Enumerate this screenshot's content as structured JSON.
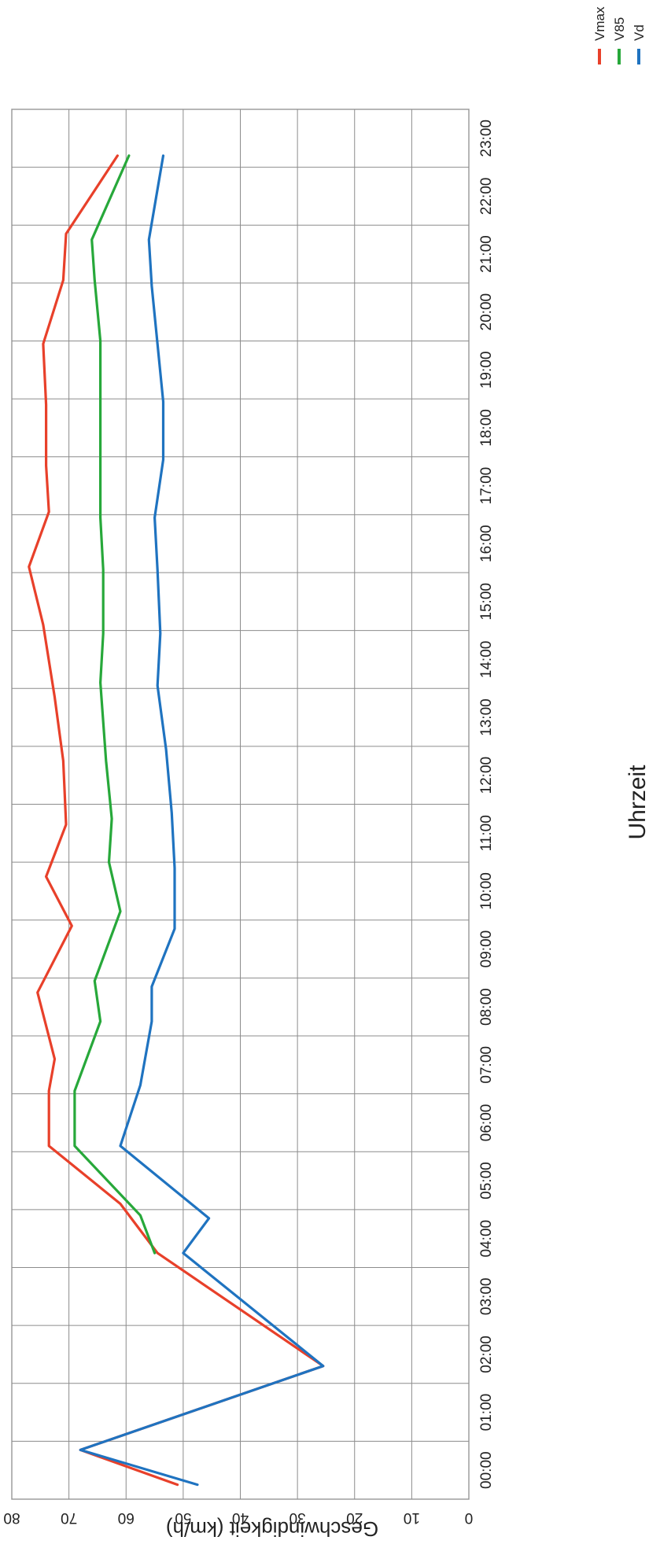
{
  "chart_data": {
    "type": "line",
    "title": "",
    "xlabel": "Uhrzeit",
    "ylabel": "Geschwindigkeit (km/h)",
    "ylim": [
      0,
      80
    ],
    "yticks": [
      0,
      10,
      20,
      30,
      40,
      50,
      60,
      70,
      80
    ],
    "grid": true,
    "legend_position": "top-right",
    "orientation": "rotated-90-clockwise",
    "x": [
      "00:00",
      "01:00",
      "02:00",
      "03:00",
      "04:00",
      "05:00",
      "06:00",
      "07:00",
      "08:00",
      "09:00",
      "10:00",
      "11:00",
      "12:00",
      "13:00",
      "14:00",
      "15:00",
      "16:00",
      "17:00",
      "18:00",
      "19:00",
      "20:00",
      "21:00",
      "22:00",
      "23:00"
    ],
    "series": [
      {
        "name": "Vmax",
        "color": "#e8402a",
        "points": [
          [
            0.25,
            51
          ],
          [
            0.85,
            68
          ],
          [
            2.3,
            25.5
          ],
          [
            4.25,
            54.5
          ],
          [
            5.1,
            61
          ],
          [
            6.1,
            73.5
          ],
          [
            7.05,
            73.5
          ],
          [
            7.6,
            72.5
          ],
          [
            8.75,
            75.5
          ],
          [
            9.9,
            69.5
          ],
          [
            10.75,
            74
          ],
          [
            11.65,
            70.5
          ],
          [
            12.75,
            71
          ],
          [
            13.85,
            72.5
          ],
          [
            15.1,
            74.5
          ],
          [
            16.1,
            77
          ],
          [
            17.05,
            73.5
          ],
          [
            17.85,
            74
          ],
          [
            18.9,
            74
          ],
          [
            19.95,
            74.5
          ],
          [
            21.05,
            71
          ],
          [
            21.85,
            70.5
          ],
          [
            23.2,
            61.5
          ]
        ]
      },
      {
        "name": "V85",
        "color": "#27a83a",
        "points": [
          [
            4.25,
            55
          ],
          [
            4.9,
            57.5
          ],
          [
            6.1,
            69
          ],
          [
            7.05,
            69
          ],
          [
            8.25,
            64.5
          ],
          [
            8.95,
            65.5
          ],
          [
            10.15,
            61
          ],
          [
            11.0,
            63
          ],
          [
            11.75,
            62.5
          ],
          [
            12.75,
            63.5
          ],
          [
            14.1,
            64.5
          ],
          [
            14.95,
            64
          ],
          [
            16.05,
            64
          ],
          [
            16.95,
            64.5
          ],
          [
            18.0,
            64.5
          ],
          [
            19.0,
            64.5
          ],
          [
            20.0,
            64.5
          ],
          [
            21.05,
            65.5
          ],
          [
            21.75,
            66
          ],
          [
            23.2,
            59.5
          ]
        ]
      },
      {
        "name": "Vd",
        "color": "#1f73c0",
        "points": [
          [
            0.25,
            47.5
          ],
          [
            0.85,
            68
          ],
          [
            2.3,
            25.5
          ],
          [
            4.25,
            50
          ],
          [
            4.85,
            45.5
          ],
          [
            6.1,
            61
          ],
          [
            7.15,
            57.5
          ],
          [
            8.25,
            55.5
          ],
          [
            8.85,
            55.5
          ],
          [
            9.85,
            51.5
          ],
          [
            10.9,
            51.5
          ],
          [
            11.85,
            52
          ],
          [
            12.95,
            53
          ],
          [
            14.05,
            54.5
          ],
          [
            14.95,
            54
          ],
          [
            16.05,
            54.5
          ],
          [
            16.95,
            55
          ],
          [
            17.95,
            53.5
          ],
          [
            18.95,
            53.5
          ],
          [
            19.95,
            54.5
          ],
          [
            20.95,
            55.5
          ],
          [
            21.75,
            56
          ],
          [
            23.2,
            53.5
          ]
        ]
      }
    ]
  },
  "legend": {
    "items": [
      {
        "name": "Vmax",
        "color": "#e8402a"
      },
      {
        "name": "V85",
        "color": "#27a83a"
      },
      {
        "name": "Vd",
        "color": "#1f73c0"
      }
    ]
  }
}
